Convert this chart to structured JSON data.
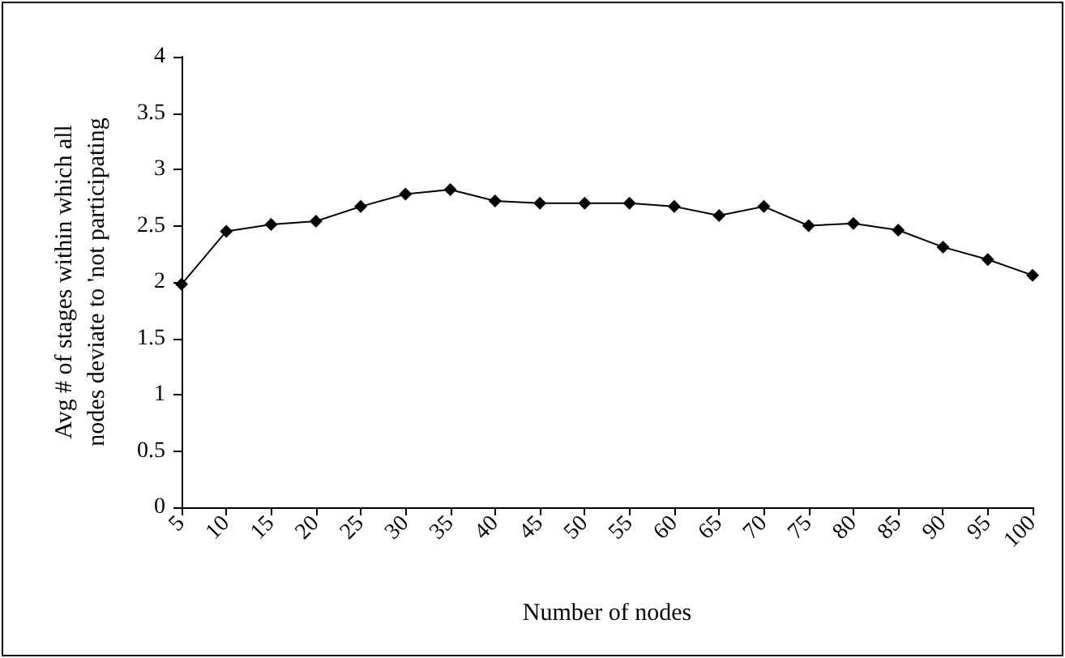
{
  "chart_data": {
    "type": "line",
    "xlabel": "Number of nodes",
    "ylabel": "Avg # of stages within which all\nnodes deviate to 'not participating",
    "categories": [
      "5",
      "10",
      "15",
      "20",
      "25",
      "30",
      "35",
      "40",
      "45",
      "50",
      "55",
      "60",
      "65",
      "70",
      "75",
      "80",
      "85",
      "90",
      "95",
      "100"
    ],
    "series": [
      {
        "color": "#000000",
        "values": [
          1.98,
          2.45,
          2.51,
          2.54,
          2.67,
          2.78,
          2.82,
          2.72,
          2.7,
          2.7,
          2.7,
          2.67,
          2.59,
          2.67,
          2.5,
          2.52,
          2.46,
          2.31,
          2.2,
          2.06
        ]
      }
    ],
    "ylim": [
      0,
      4
    ],
    "yticks": [
      0,
      0.5,
      1,
      1.5,
      2,
      2.5,
      3,
      3.5,
      4
    ],
    "grid": false,
    "marker": "diamond",
    "line_style": "solid"
  }
}
